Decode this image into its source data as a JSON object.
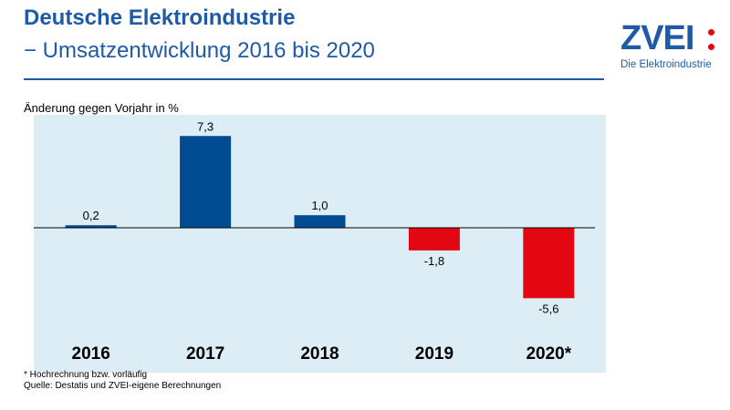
{
  "header": {
    "title_line1": "Deutsche Elektroindustrie",
    "title_line2": "− Umsatzentwicklung 2016 bis 2020"
  },
  "logo": {
    "wordmark": "ZVEI",
    "tagline": "Die Elektroindustrie",
    "dot_color": "#e30613"
  },
  "colors": {
    "brand_blue": "#1f5aa6",
    "positive_bar": "#004c93",
    "negative_bar": "#e30613",
    "plot_background": "#dcedf5"
  },
  "chart_data": {
    "type": "bar",
    "title": "Umsatzentwicklung 2016 bis 2020",
    "ylabel": "Änderung gegen Vorjahr in %",
    "xlabel": "",
    "categories": [
      "2016",
      "2017",
      "2018",
      "2019",
      "2020*"
    ],
    "values": [
      0.2,
      7.3,
      1.0,
      -1.8,
      -5.6
    ],
    "value_labels": [
      "0,2",
      "7,3",
      "1,0",
      "-1,8",
      "-5,6"
    ],
    "ylim": [
      -8,
      9.5
    ],
    "grid": false,
    "legend": "none"
  },
  "footer": {
    "footnote": "* Hochrechnung bzw. vorläufig",
    "source": "Quelle: Destatis und ZVEI-eigene Berechnungen"
  }
}
